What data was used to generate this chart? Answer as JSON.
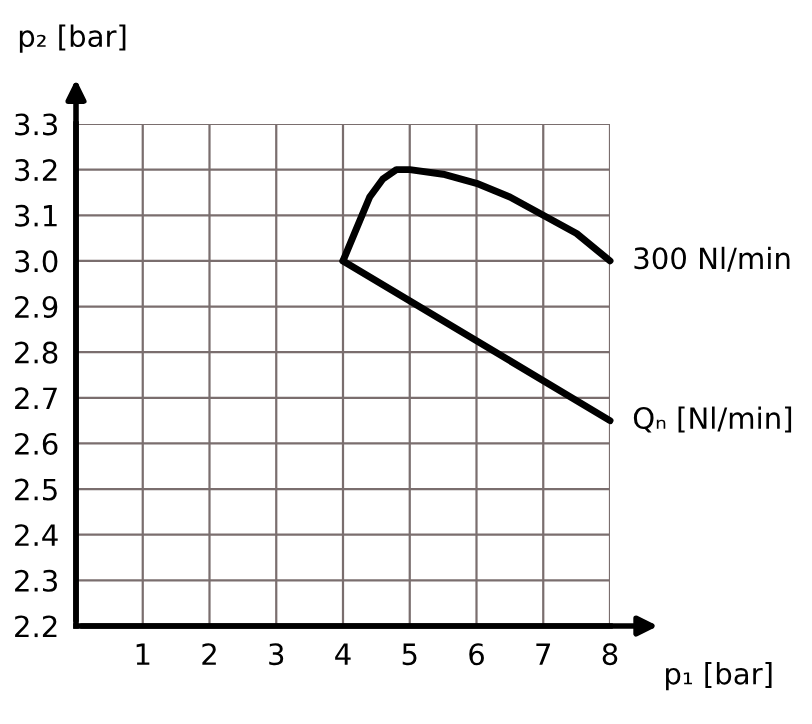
{
  "chart_data": {
    "type": "line",
    "xlabel": "p₁ [bar]",
    "ylabel": "p₂ [bar]",
    "series": [
      {
        "name": "300 Nl/min",
        "color": "#000000",
        "x": [
          4,
          4.2,
          4.4,
          4.6,
          4.8,
          5,
          5.5,
          6,
          6.5,
          7,
          7.5,
          8
        ],
        "values": [
          3.0,
          3.07,
          3.14,
          3.18,
          3.2,
          3.2,
          3.19,
          3.17,
          3.14,
          3.1,
          3.06,
          3.0
        ]
      },
      {
        "name": "Qₙ [Nl/min]",
        "color": "#000000",
        "x": [
          4,
          8
        ],
        "values": [
          3.0,
          2.65
        ]
      }
    ],
    "xlim": [
      0,
      8
    ],
    "ylim": [
      2.2,
      3.3
    ],
    "xticks": [
      1,
      2,
      3,
      4,
      5,
      6,
      7,
      8
    ],
    "yticks": [
      {
        "value": 2.2,
        "label": "2.2"
      },
      {
        "value": 2.3,
        "label": "2.3"
      },
      {
        "value": 2.4,
        "label": "2.4"
      },
      {
        "value": 2.5,
        "label": "2.5"
      },
      {
        "value": 2.6,
        "label": "2.6"
      },
      {
        "value": 2.7,
        "label": "2.7"
      },
      {
        "value": 2.8,
        "label": "2.8"
      },
      {
        "value": 2.9,
        "label": "2.9"
      },
      {
        "value": 3.0,
        "label": "3.0"
      },
      {
        "value": 3.1,
        "label": "3.1"
      },
      {
        "value": 3.2,
        "label": "3.2"
      },
      {
        "value": 3.3,
        "label": "3.3"
      }
    ],
    "grid": true,
    "legend": false,
    "marker": "none",
    "line_style": "solid"
  }
}
